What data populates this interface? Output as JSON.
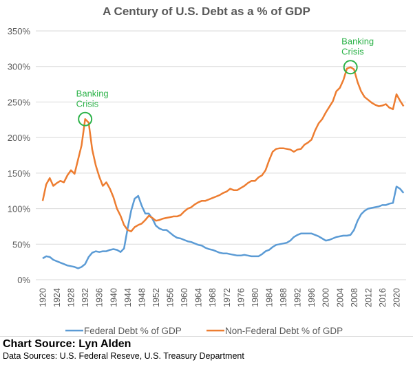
{
  "chart_data": {
    "type": "line",
    "title": "A Century of U.S. Debt as a % of GDP",
    "xlabel": "",
    "ylabel": "",
    "x_start": 1920,
    "x_end": 2022,
    "x_tick_labels": [
      "1920",
      "1924",
      "1928",
      "1932",
      "1936",
      "1940",
      "1944",
      "1948",
      "1952",
      "1956",
      "1960",
      "1964",
      "1968",
      "1972",
      "1976",
      "1980",
      "1984",
      "1988",
      "1992",
      "1996",
      "2000",
      "2004",
      "2008",
      "2012",
      "2016",
      "2020"
    ],
    "ylim": [
      0,
      350
    ],
    "y_tick_labels": [
      "0%",
      "50%",
      "100%",
      "150%",
      "200%",
      "250%",
      "300%",
      "350%"
    ],
    "y_ticks": [
      0,
      50,
      100,
      150,
      200,
      250,
      300,
      350
    ],
    "grid": true,
    "legend_position": "bottom",
    "series": [
      {
        "name": "Federal Debt % of GDP",
        "color": "#5b9bd5",
        "values": [
          30,
          33,
          32,
          28,
          26,
          24,
          22,
          20,
          19,
          18,
          16,
          18,
          22,
          32,
          38,
          40,
          39,
          40,
          40,
          42,
          43,
          42,
          39,
          44,
          72,
          97,
          114,
          118,
          104,
          93,
          93,
          86,
          76,
          72,
          70,
          70,
          66,
          62,
          59,
          58,
          56,
          54,
          53,
          51,
          49,
          48,
          45,
          43,
          42,
          40,
          38,
          37,
          37,
          36,
          35,
          34,
          34,
          35,
          34,
          33,
          33,
          33,
          36,
          40,
          42,
          46,
          49,
          50,
          51,
          52,
          55,
          60,
          63,
          65,
          65,
          65,
          65,
          63,
          61,
          58,
          55,
          56,
          58,
          60,
          61,
          62,
          62,
          63,
          70,
          83,
          92,
          97,
          100,
          101,
          102,
          103,
          105,
          105,
          107,
          108,
          131,
          128,
          122
        ]
      },
      {
        "name": "Non-Federal Debt % of GDP",
        "color": "#ed7d31",
        "values": [
          111,
          134,
          143,
          132,
          136,
          139,
          137,
          147,
          154,
          149,
          169,
          189,
          226,
          221,
          183,
          161,
          145,
          132,
          137,
          128,
          116,
          100,
          90,
          77,
          70,
          68,
          74,
          77,
          79,
          84,
          90,
          87,
          83,
          84,
          86,
          87,
          88,
          89,
          89,
          91,
          96,
          100,
          102,
          106,
          109,
          111,
          111,
          113,
          115,
          117,
          119,
          122,
          124,
          128,
          126,
          126,
          129,
          132,
          136,
          139,
          139,
          144,
          147,
          154,
          168,
          180,
          184,
          185,
          185,
          184,
          183,
          180,
          183,
          184,
          190,
          193,
          197,
          210,
          220,
          226,
          235,
          243,
          251,
          265,
          270,
          281,
          297,
          299,
          296,
          278,
          265,
          257,
          253,
          249,
          246,
          244,
          245,
          247,
          242,
          240,
          261,
          252,
          244
        ]
      }
    ],
    "annotations": [
      {
        "line1": "Banking",
        "line2": "Crisis",
        "year": 1932,
        "value": 226,
        "color": "#2eb34a"
      },
      {
        "line1": "Banking",
        "line2": "Crisis",
        "year": 2007,
        "value": 299,
        "color": "#2eb34a"
      }
    ]
  },
  "footer": {
    "chart_source": "Chart Source: Lyn Alden",
    "data_sources": "Data Sources: U.S. Federal Reseve, U.S. Treasury Department"
  }
}
